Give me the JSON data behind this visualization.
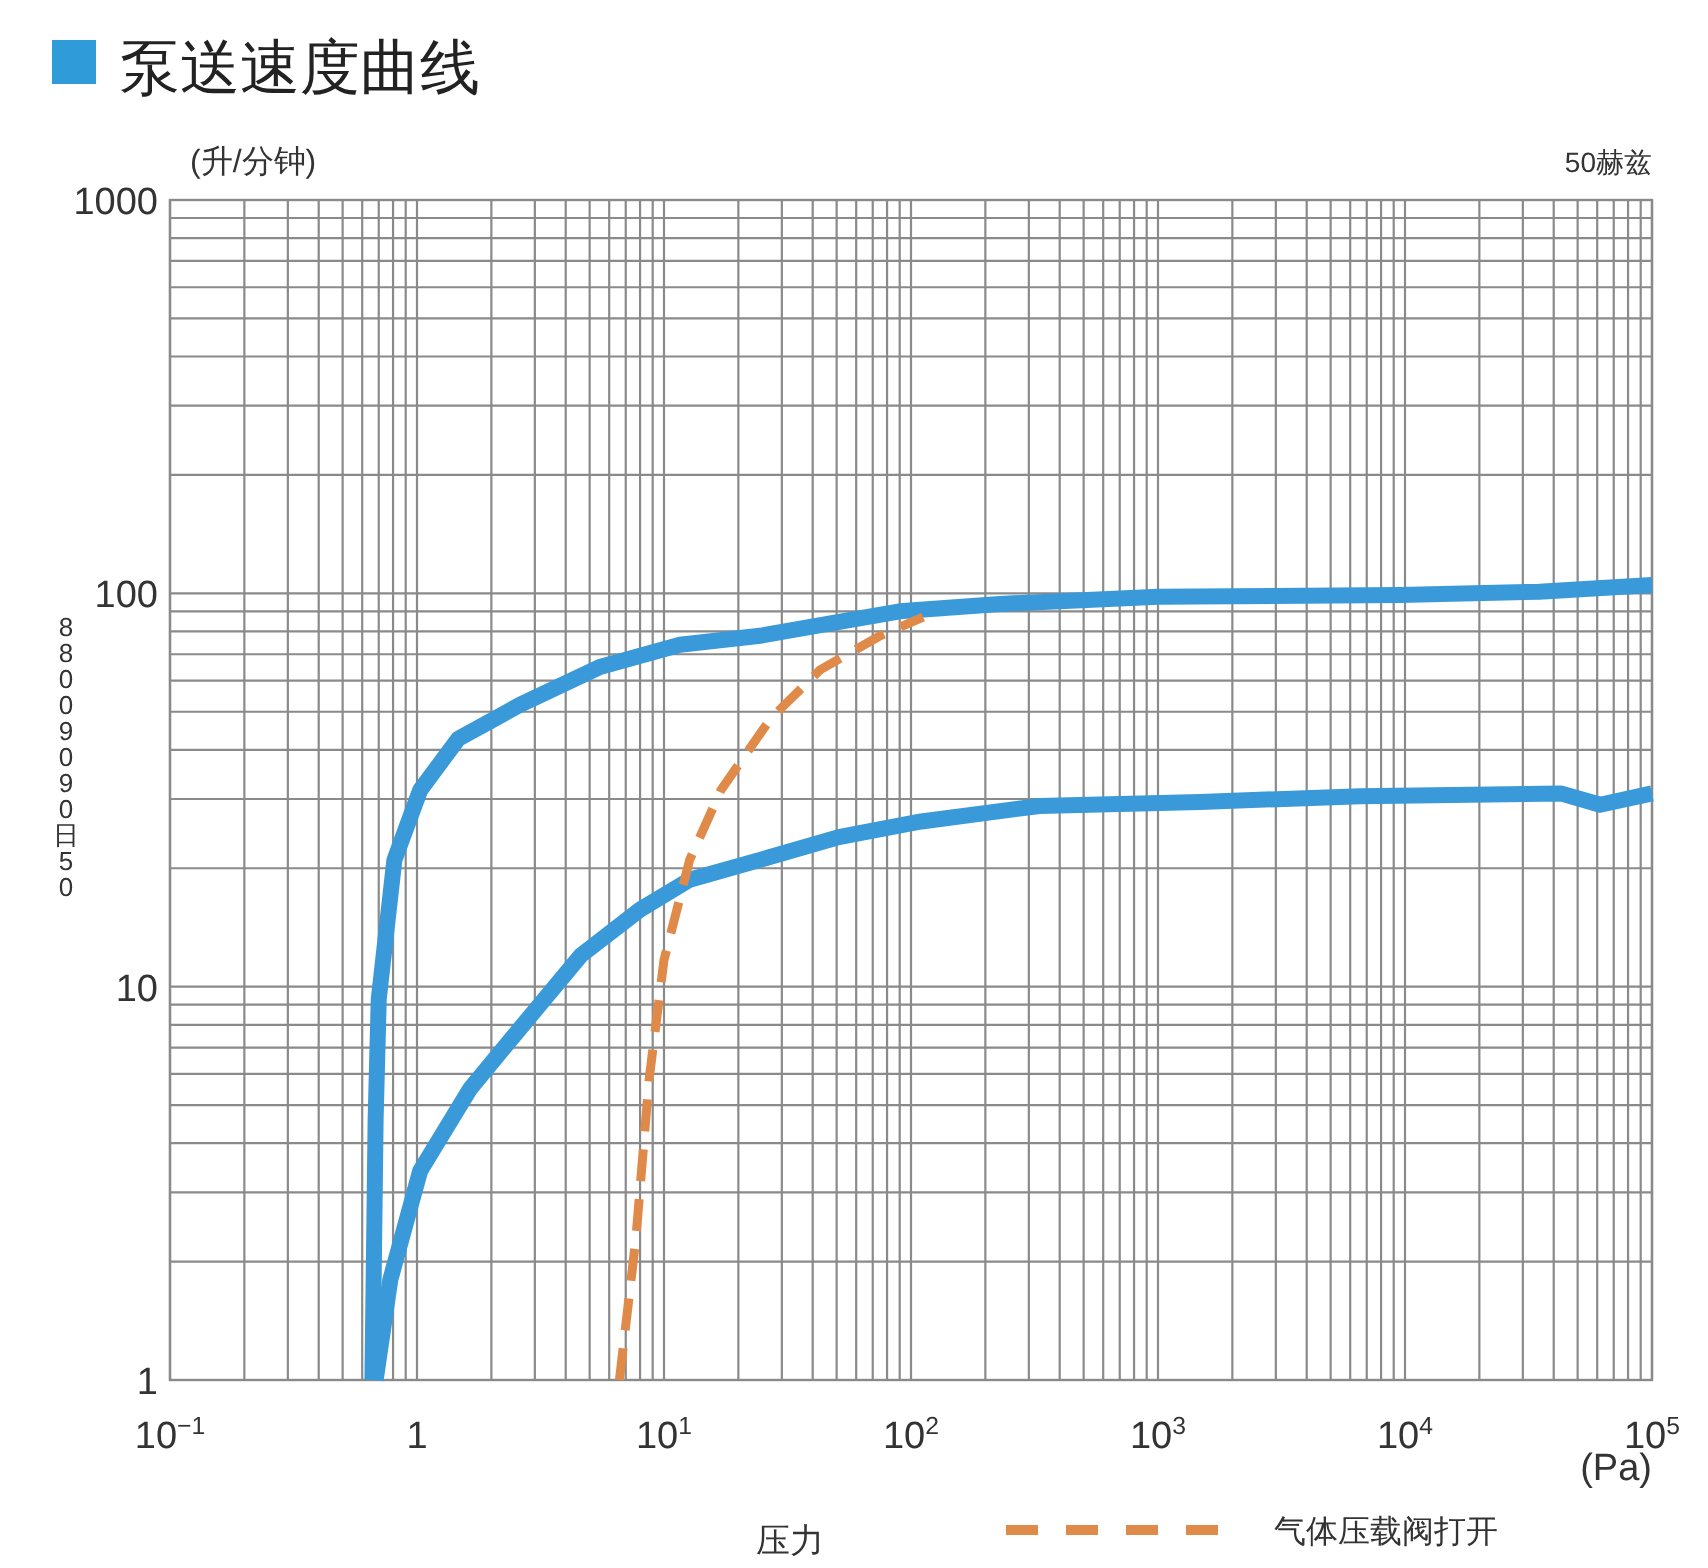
{
  "chart_data": {
    "type": "line",
    "title": "泵送速度曲线",
    "ylabel": "(升/分钟)",
    "xlabel": "压力",
    "annotations": [
      "50赫兹",
      "(Pa)",
      "88009090日50"
    ],
    "log": "xy",
    "grid": true,
    "legend": "bottom",
    "xlim": [
      0.1,
      100000
    ],
    "ylim": [
      1,
      1000
    ],
    "xticks": [
      {
        "value": 0.1,
        "label": "10$^{−1}$"
      },
      1,
      {
        "value": 10,
        "label": "10$^{1}$"
      },
      {
        "value": 100,
        "label": "10$^{2}$"
      },
      {
        "value": 1000,
        "label": "10$^{3}$"
      },
      {
        "value": 10000,
        "label": "10$^{4}$"
      },
      {
        "value": 100000,
        "label": "10$^{5}$"
      }
    ],
    "yticks": [
      1,
      10,
      100,
      1000
    ],
    "series": [
      {
        "color": "#3a9ad9",
        "line_style": "solid",
        "x": [
          0.66,
          0.68,
          0.7,
          0.81,
          1.03,
          1.47,
          2.6,
          5.5,
          11.6,
          24.5,
          43,
          90,
          229,
          1000,
          9550,
          35000,
          100000
        ],
        "values": [
          1,
          4.6,
          9.3,
          21,
          31.6,
          42.7,
          52,
          65,
          74,
          78,
          83,
          90,
          94,
          98,
          99,
          101,
          105
        ]
      },
      {
        "color": "#3a9ad9",
        "line_style": "solid",
        "x": [
          0.68,
          0.78,
          1.03,
          1.64,
          2.6,
          4.6,
          8,
          12.7,
          24.5,
          51,
          110,
          331,
          1480,
          6600,
          42700,
          61700,
          100000
        ],
        "values": [
          1,
          1.8,
          3.4,
          5.5,
          7.8,
          12,
          15.7,
          18.7,
          21,
          24,
          26.3,
          28.8,
          29.5,
          30.5,
          31,
          29,
          31
        ]
      },
      {
        "name": "气体压载阀打开",
        "color": "#e08a4a",
        "line_style": "dashed",
        "x": [
          6.6,
          7.7,
          8.7,
          10,
          12.7,
          17,
          27,
          43,
          75,
          112
        ],
        "values": [
          1,
          2.3,
          5.8,
          11.7,
          21,
          31.6,
          48,
          64,
          78,
          87
        ]
      }
    ]
  }
}
